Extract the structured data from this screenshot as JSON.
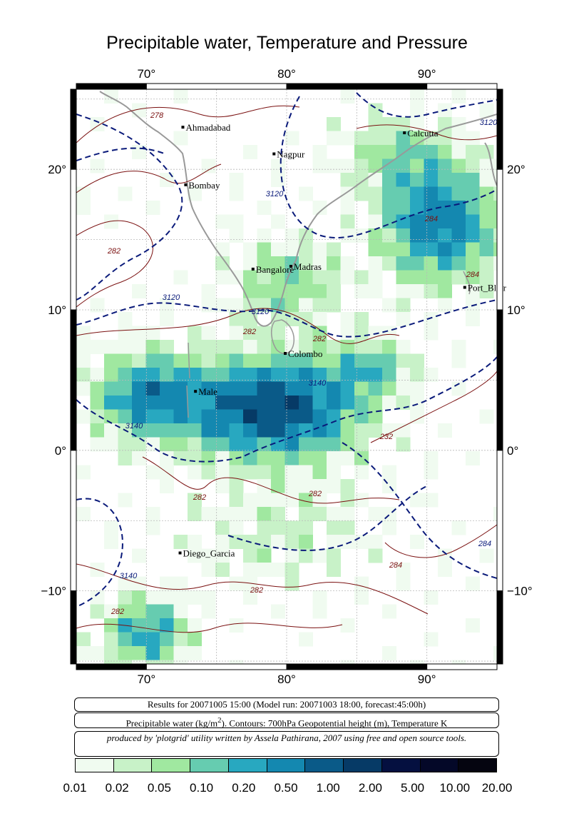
{
  "title": "Precipitable water, Temperature and Pressure",
  "axes": {
    "lon_labels": [
      "70°",
      "80°",
      "90°"
    ],
    "lat_labels": [
      "20°",
      "10°",
      "0°",
      "−10°"
    ]
  },
  "cities": [
    {
      "name": "Ahmadabad",
      "lon": 72.6,
      "lat": 23.0
    },
    {
      "name": "Nagpur",
      "lon": 79.1,
      "lat": 21.1
    },
    {
      "name": "Calcutta",
      "lon": 88.4,
      "lat": 22.6
    },
    {
      "name": "Bombay",
      "lon": 72.8,
      "lat": 18.9
    },
    {
      "name": "Bangalore",
      "lon": 77.6,
      "lat": 12.9
    },
    {
      "name": "Madras",
      "lon": 80.3,
      "lat": 13.1
    },
    {
      "name": "Port_Blair",
      "lon": 92.7,
      "lat": 11.6
    },
    {
      "name": "Colombo",
      "lon": 79.9,
      "lat": 6.9
    },
    {
      "name": "Male",
      "lon": 73.5,
      "lat": 4.2
    },
    {
      "name": "Diego_Garcia",
      "lon": 72.4,
      "lat": -7.3
    }
  ],
  "contour_labels": [
    "278",
    "3120",
    "282",
    "3140",
    "284",
    "232"
  ],
  "info": {
    "results": "Results for 20071005 15:00 (Model run: 20071003 18:00, forecast:45:00h)",
    "legend_prefix": "Precipitable water (kg/m",
    "legend_sup": "2",
    "legend_suffix": ").  Contours: 700hPa Geopotential height (m), Temperature K",
    "credit": "produced by 'plotgrid' utility written by Assela Pathirana, 2007 using free and open source tools."
  },
  "colorbar": {
    "colors": [
      "#f0fbf0",
      "#c8f2c8",
      "#a0e8a0",
      "#66ccb0",
      "#28a8c0",
      "#1488b0",
      "#0a5a88",
      "#063a66",
      "#051040",
      "#040828",
      "#050510"
    ],
    "ticks": [
      "0.01",
      "0.02",
      "0.05",
      "0.10",
      "0.20",
      "0.50",
      "1.00",
      "2.00",
      "5.00",
      "10.00",
      "20.00"
    ]
  }
}
